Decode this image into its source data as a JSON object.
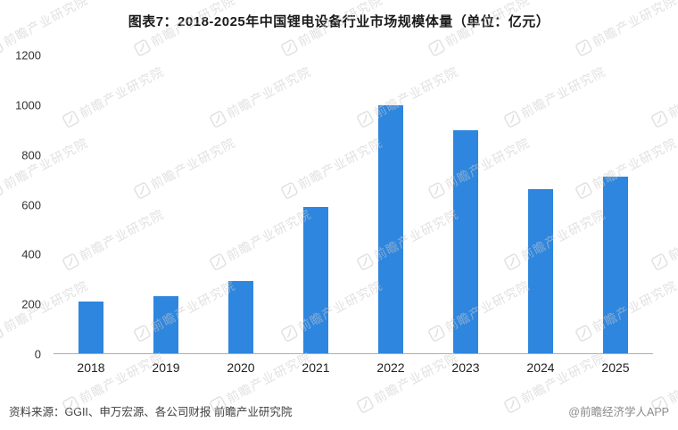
{
  "title": "图表7：2018-2025年中国锂电设备行业市场规模体量（单位：亿元）",
  "chart_data": {
    "type": "bar",
    "title": "图表7：2018-2025年中国锂电设备行业市场规模体量（单位：亿元）",
    "categories": [
      "2018",
      "2019",
      "2020",
      "2021",
      "2022",
      "2023",
      "2024",
      "2025"
    ],
    "values": [
      210,
      230,
      290,
      590,
      1000,
      900,
      660,
      710
    ],
    "unit": "亿元",
    "xlabel": "",
    "ylabel": "",
    "ylim": [
      0,
      1200
    ],
    "yticks": [
      0,
      200,
      400,
      600,
      800,
      1000,
      1200
    ],
    "grid": false,
    "legend": false
  },
  "watermark": {
    "text": "前瞻产业研究院"
  },
  "footer": {
    "source": "资料来源：GGII、申万宏源、各公司财报  前瞻产业研究院",
    "credit": "@前瞻经济学人APP"
  },
  "colors": {
    "bar": "#2E86DE",
    "axis": "#ADADAD",
    "tick_text": "#333333",
    "watermark": "#C9C9C9"
  }
}
